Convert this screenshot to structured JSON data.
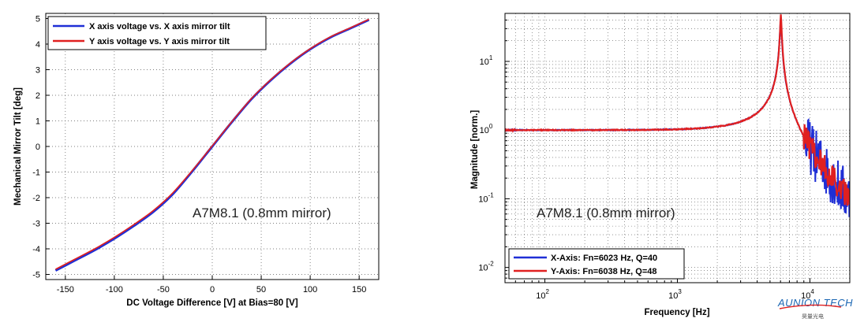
{
  "chart_data": [
    {
      "type": "line",
      "xlabel": "DC Voltage Difference [V] at Bias=80 [V]",
      "ylabel": "Mechanical Mirror Tilt [deg]",
      "xlim": [
        -170,
        170
      ],
      "ylim": [
        -5.2,
        5.2
      ],
      "xticks": [
        "-150",
        "-100",
        "-50",
        "0",
        "50",
        "100",
        "150"
      ],
      "yticks": [
        "-5",
        "-4",
        "-3",
        "-2",
        "-1",
        "0",
        "1",
        "2",
        "3",
        "4",
        "5"
      ],
      "grid": true,
      "legend_position": "top-left",
      "annotation": "A7M8.1 (0.8mm mirror)",
      "x": [
        -160,
        -140,
        -120,
        -100,
        -80,
        -60,
        -40,
        -20,
        0,
        20,
        40,
        60,
        80,
        100,
        120,
        140,
        160
      ],
      "series": [
        {
          "name": "X axis voltage vs. X axis mirror tilt",
          "color": "#1f2fd6",
          "values": [
            -4.85,
            -4.45,
            -4.05,
            -3.6,
            -3.1,
            -2.55,
            -1.85,
            -0.95,
            0.0,
            0.95,
            1.85,
            2.6,
            3.25,
            3.8,
            4.25,
            4.6,
            4.95
          ]
        },
        {
          "name": "Y axis voltage vs. Y axis mirror tilt",
          "color": "#e02020",
          "values": [
            -4.8,
            -4.4,
            -4.0,
            -3.55,
            -3.05,
            -2.5,
            -1.8,
            -0.92,
            0.02,
            0.97,
            1.87,
            2.62,
            3.27,
            3.82,
            4.27,
            4.62,
            4.97
          ]
        }
      ]
    },
    {
      "type": "line",
      "xlabel": "Frequency [Hz]",
      "ylabel": "Magnitude [norm.]",
      "xscale": "log",
      "yscale": "log",
      "xlim": [
        50,
        20000
      ],
      "ylim": [
        0.006,
        50
      ],
      "xticks": [
        {
          "base": "10",
          "exp": "2"
        },
        {
          "base": "10",
          "exp": "3"
        },
        {
          "base": "10",
          "exp": "4"
        }
      ],
      "yticks": [
        {
          "base": "10",
          "exp": "-2"
        },
        {
          "base": "10",
          "exp": "-1"
        },
        {
          "base": "10",
          "exp": "0"
        },
        {
          "base": "10",
          "exp": "1"
        }
      ],
      "grid": true,
      "legend_position": "bottom-left",
      "annotation": "A7M8.1 (0.8mm mirror)",
      "series": [
        {
          "name": "X-Axis: Fn=6023 Hz, Q=40",
          "color": "#1f2fd6",
          "fn": 6023,
          "q": 40
        },
        {
          "name": "Y-Axis: Fn=6038 Hz, Q=48",
          "color": "#e02020",
          "fn": 6038,
          "q": 48
        }
      ]
    }
  ],
  "watermark": {
    "text": "AUNION TECH",
    "sub": "昊量光电"
  }
}
